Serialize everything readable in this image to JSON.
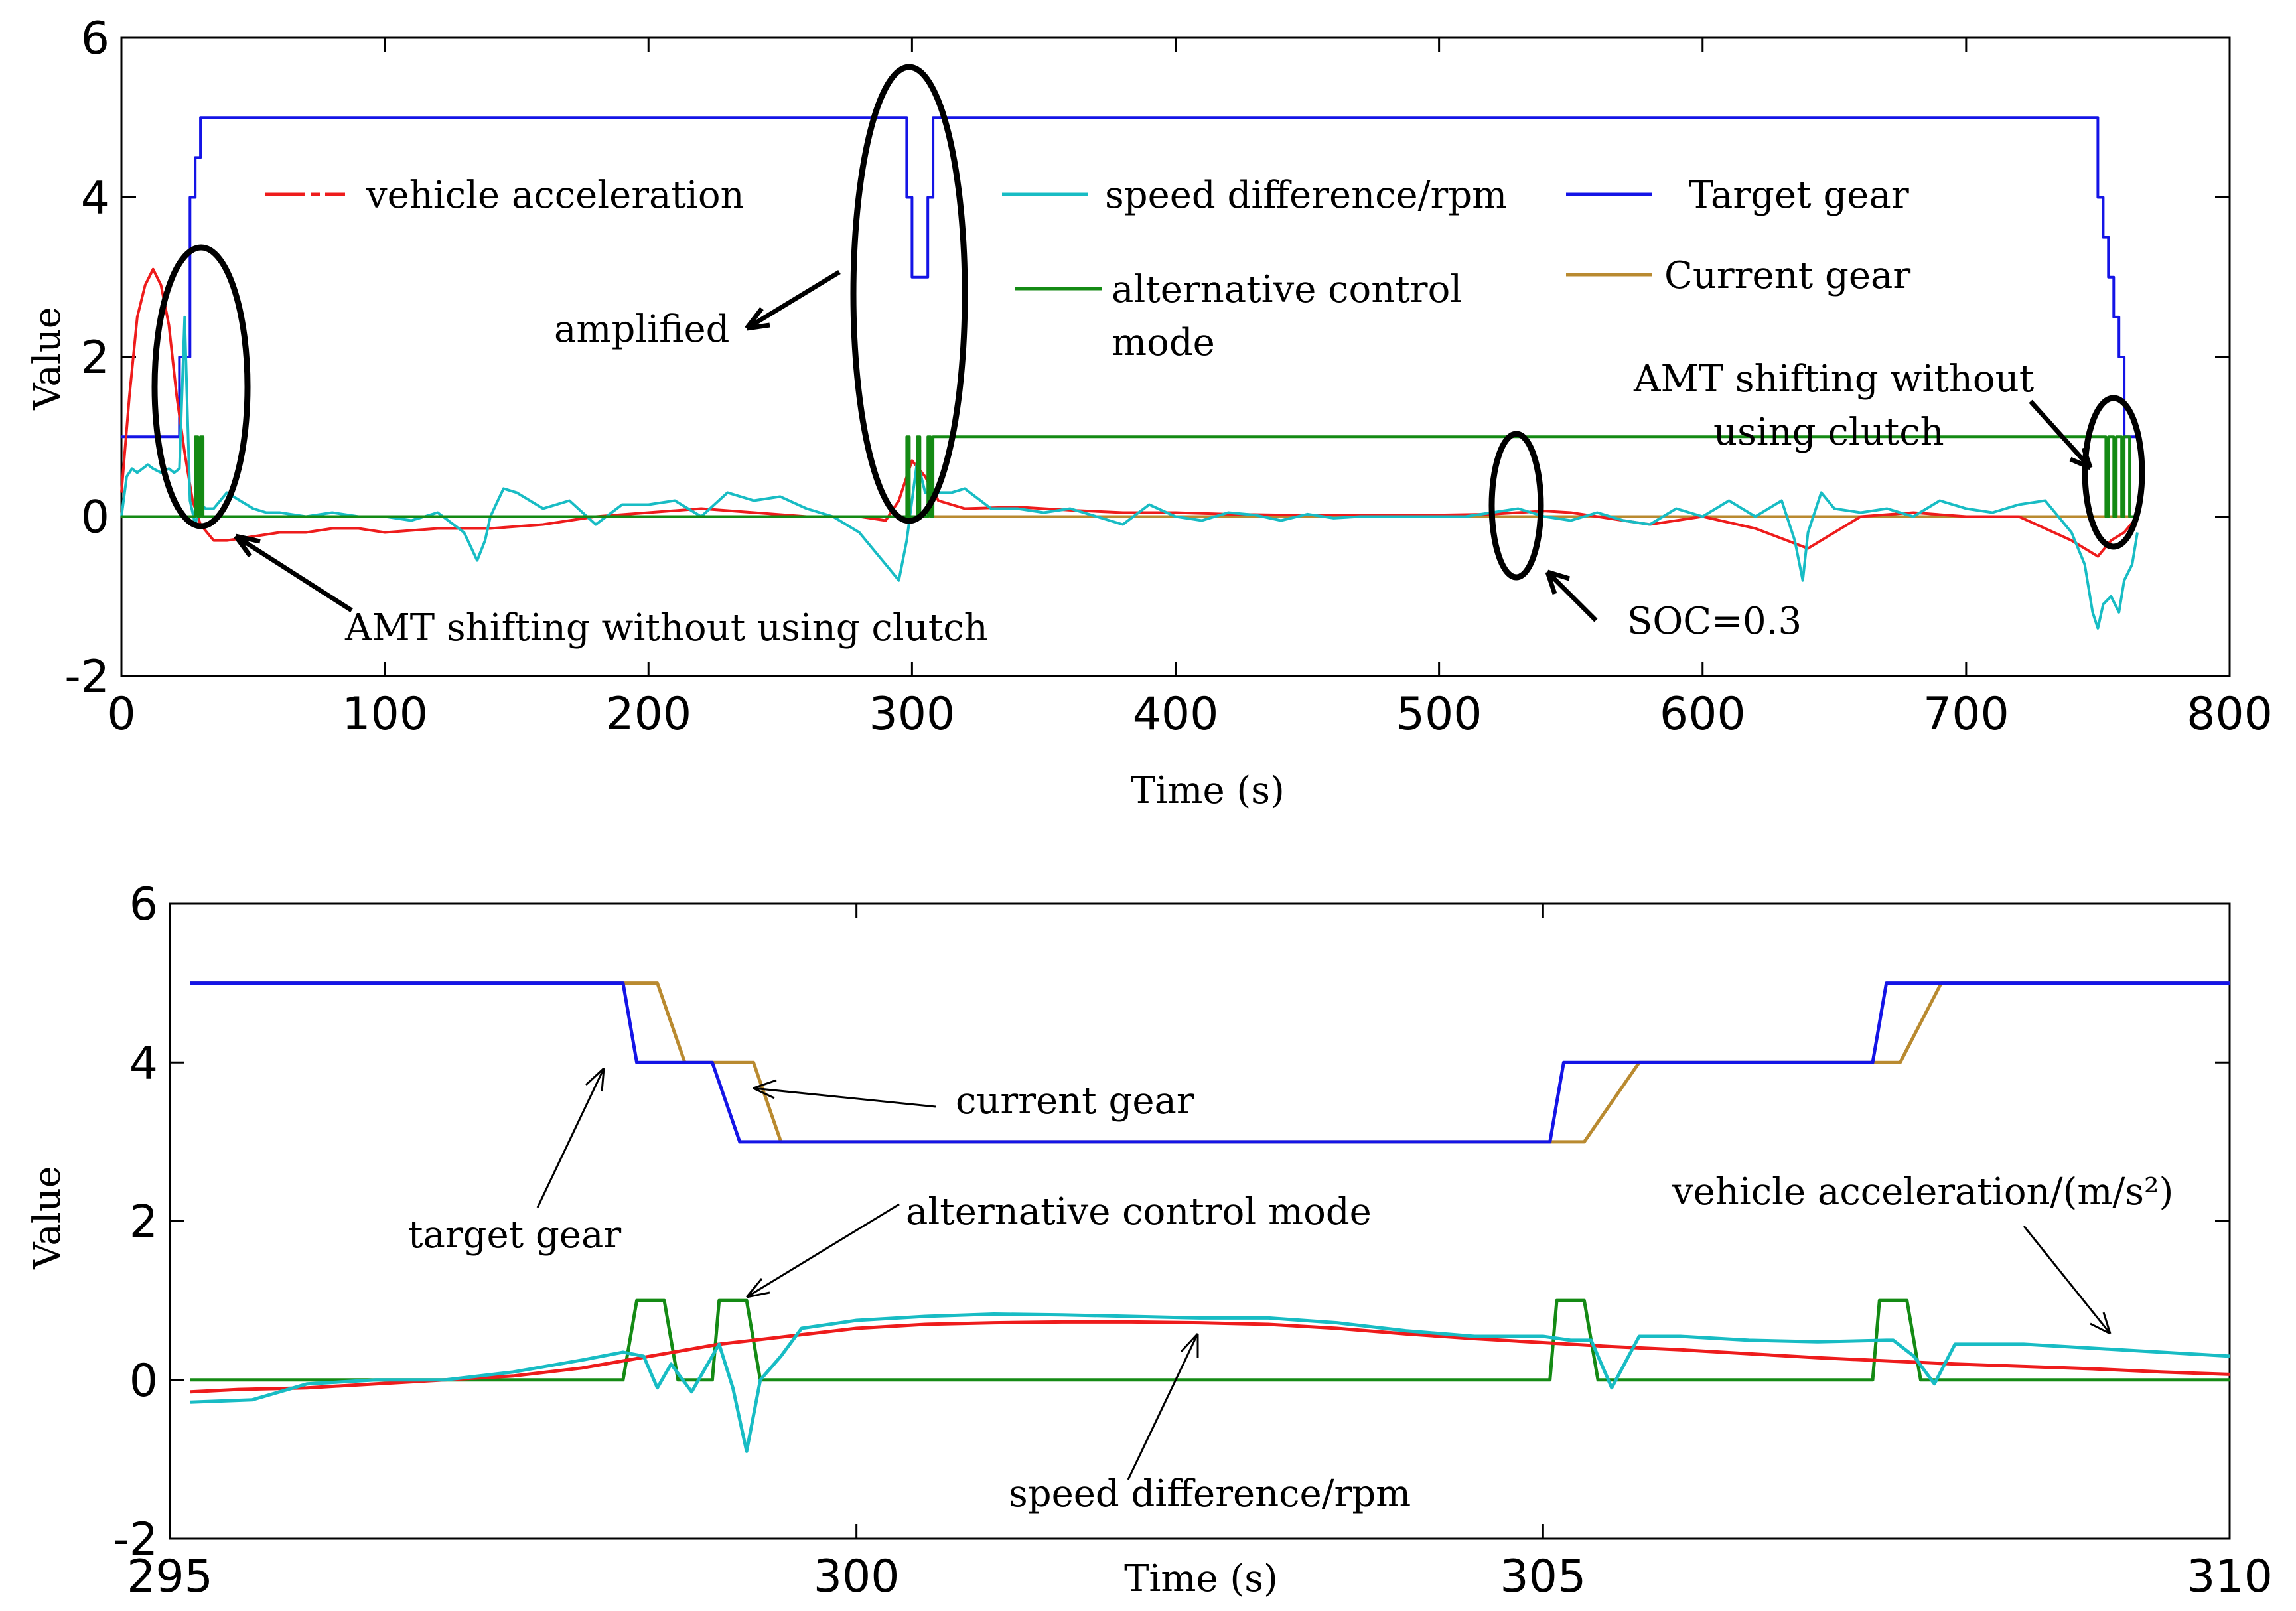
{
  "colors": {
    "vehicle_acceleration": "#ee1c1c",
    "speed_difference": "#18bcc4",
    "target_gear": "#1414e6",
    "current_gear": "#b98a30",
    "alternative_control": "#148a14"
  },
  "chart_data": [
    {
      "type": "line",
      "xlabel": "Time (s)",
      "ylabel": "Value",
      "xlim": [
        0,
        800
      ],
      "ylim": [
        -2,
        6
      ],
      "xticks": [
        "0",
        "100",
        "200",
        "300",
        "400",
        "500",
        "600",
        "700",
        "800"
      ],
      "yticks": [
        "-2",
        "0",
        "2",
        "4",
        "6"
      ],
      "legend": [
        {
          "key": "vehicle_acceleration",
          "label": "vehicle acceleration"
        },
        {
          "key": "speed_difference",
          "label": "speed difference/rpm"
        },
        {
          "key": "target_gear",
          "label": "Target gear"
        },
        {
          "key": "alternative_control",
          "label": "alternative control",
          "label2": "mode"
        },
        {
          "key": "current_gear",
          "label": "Current gear"
        }
      ],
      "annotations": {
        "amplified": "amplified",
        "amt_left": "AMT shifting without using clutch",
        "soc": "SOC=0.3",
        "amt_right_1": "AMT shifting without",
        "amt_right_2": "using clutch"
      },
      "series": [
        {
          "name": "Target gear",
          "key": "target_gear",
          "x": [
            0,
            22,
            22,
            26,
            26,
            28,
            28,
            30,
            30,
            298,
            298,
            300,
            300,
            306,
            306,
            308,
            308,
            750,
            750,
            752,
            752,
            754,
            754,
            756,
            756,
            758,
            758,
            760,
            760,
            765
          ],
          "y": [
            1,
            1,
            2,
            2,
            4,
            4,
            4.5,
            4.5,
            5,
            5,
            4,
            4,
            3,
            3,
            4,
            4,
            5,
            5,
            4,
            4,
            3.5,
            3.5,
            3,
            3,
            2.5,
            2.5,
            2,
            2,
            1,
            1
          ]
        },
        {
          "name": "Current gear",
          "key": "current_gear",
          "x": [
            0,
            765
          ],
          "y": [
            0,
            0
          ]
        },
        {
          "name": "vehicle acceleration",
          "key": "vehicle_acceleration",
          "x": [
            0,
            3,
            6,
            9,
            12,
            15,
            18,
            21,
            24,
            27,
            30,
            35,
            40,
            50,
            60,
            70,
            80,
            90,
            100,
            120,
            140,
            160,
            180,
            200,
            220,
            240,
            260,
            280,
            290,
            295,
            300,
            305,
            310,
            320,
            340,
            360,
            380,
            400,
            420,
            440,
            460,
            480,
            500,
            520,
            540,
            550,
            560,
            580,
            600,
            620,
            640,
            660,
            680,
            700,
            720,
            740,
            750,
            755,
            760,
            765
          ],
          "y": [
            0.3,
            1.5,
            2.5,
            2.9,
            3.1,
            2.9,
            2.4,
            1.5,
            0.8,
            0.2,
            -0.1,
            -0.3,
            -0.3,
            -0.25,
            -0.2,
            -0.2,
            -0.15,
            -0.15,
            -0.2,
            -0.15,
            -0.15,
            -0.1,
            0,
            0.05,
            0.1,
            0.05,
            0,
            0,
            -0.05,
            0.2,
            0.7,
            0.5,
            0.2,
            0.1,
            0.12,
            0.08,
            0.05,
            0.05,
            0.03,
            0.02,
            0.02,
            0.02,
            0.02,
            0.03,
            0.07,
            0.05,
            0,
            -0.1,
            0,
            -0.15,
            -0.4,
            0,
            0.05,
            0,
            0,
            -0.3,
            -0.5,
            -0.3,
            -0.2,
            0
          ]
        },
        {
          "name": "speed difference/rpm",
          "key": "speed_difference",
          "x": [
            0,
            2,
            4,
            6,
            8,
            10,
            12,
            15,
            18,
            20,
            22,
            24,
            26,
            28,
            30,
            32,
            35,
            40,
            45,
            50,
            55,
            60,
            70,
            80,
            90,
            100,
            110,
            120,
            130,
            135,
            138,
            140,
            145,
            150,
            160,
            170,
            180,
            190,
            200,
            210,
            220,
            230,
            240,
            250,
            260,
            270,
            280,
            285,
            290,
            295,
            298,
            302,
            305,
            310,
            315,
            320,
            330,
            340,
            350,
            360,
            370,
            380,
            390,
            400,
            410,
            420,
            430,
            440,
            450,
            460,
            470,
            480,
            490,
            500,
            510,
            520,
            530,
            540,
            550,
            560,
            570,
            580,
            590,
            600,
            610,
            620,
            630,
            635,
            638,
            640,
            645,
            650,
            660,
            670,
            680,
            690,
            700,
            710,
            720,
            730,
            740,
            745,
            748,
            750,
            752,
            755,
            758,
            760,
            763,
            765
          ],
          "y": [
            0,
            0.5,
            0.6,
            0.55,
            0.6,
            0.65,
            0.6,
            0.55,
            0.6,
            0.55,
            0.6,
            2.5,
            0.2,
            -0.1,
            0.15,
            0.1,
            0.1,
            0.3,
            0.2,
            0.1,
            0.05,
            0.05,
            0,
            0.05,
            0,
            0,
            -0.05,
            0.05,
            -0.2,
            -0.55,
            -0.3,
            0,
            0.35,
            0.3,
            0.1,
            0.2,
            -0.1,
            0.15,
            0.15,
            0.2,
            0,
            0.3,
            0.2,
            0.25,
            0.1,
            0,
            -0.2,
            -0.4,
            -0.6,
            -0.8,
            -0.3,
            0.7,
            0.3,
            0.3,
            0.3,
            0.35,
            0.1,
            0.1,
            0.05,
            0.1,
            0,
            -0.1,
            0.15,
            0,
            -0.05,
            0.05,
            0.02,
            -0.05,
            0.03,
            -0.02,
            0,
            0,
            0,
            0,
            0,
            0.05,
            0.1,
            0,
            -0.05,
            0.05,
            -0.05,
            -0.1,
            0.1,
            0,
            0.2,
            0,
            0.2,
            -0.3,
            -0.8,
            -0.2,
            0.3,
            0.1,
            0.05,
            0.1,
            0,
            0.2,
            0.1,
            0.05,
            0.15,
            0.2,
            -0.2,
            -0.6,
            -1.2,
            -1.4,
            -1.1,
            -1.0,
            -1.2,
            -0.8,
            -0.6,
            -0.2
          ]
        },
        {
          "name": "alternative control mode",
          "key": "alternative_control",
          "x": [
            0,
            28,
            28,
            29,
            29,
            30,
            30,
            31,
            31,
            298,
            298,
            299,
            299,
            302,
            302,
            303,
            303,
            306,
            306,
            307,
            307,
            308,
            308,
            753,
            753,
            754,
            754,
            756,
            756,
            757,
            757,
            759,
            759,
            760,
            760,
            762,
            762,
            765
          ],
          "y": [
            0,
            0,
            1,
            1,
            0,
            0,
            1,
            1,
            0,
            0,
            1,
            1,
            0,
            0,
            1,
            1,
            0,
            0,
            1,
            1,
            0,
            0,
            1,
            1,
            0,
            0,
            1,
            1,
            0,
            0,
            1,
            1,
            0,
            0,
            1,
            1,
            0,
            0
          ]
        }
      ]
    },
    {
      "type": "line",
      "xlabel": "Time (s)",
      "ylabel": "Value",
      "xlim": [
        295,
        310
      ],
      "ylim": [
        -2,
        6
      ],
      "xticks": [
        "295",
        "300",
        "305",
        "310"
      ],
      "yticks": [
        "-2",
        "0",
        "2",
        "4",
        "6"
      ],
      "annotations": {
        "current_gear": "current gear",
        "target_gear": "target gear",
        "alternative_control": "alternative control mode",
        "vehicle_acceleration": "vehicle acceleration/(m/s²)",
        "speed_difference": "speed difference/rpm"
      },
      "series": [
        {
          "name": "current gear",
          "key": "current_gear",
          "x": [
            295.15,
            298.55,
            298.75,
            299.25,
            299.45,
            305.3,
            305.7,
            307.6,
            307.9,
            310
          ],
          "y": [
            5,
            5,
            4,
            4,
            3,
            3,
            4,
            4,
            5,
            5
          ]
        },
        {
          "name": "target gear",
          "key": "target_gear",
          "x": [
            295.15,
            298.3,
            298.4,
            298.95,
            299.15,
            305.05,
            305.15,
            307.4,
            307.5,
            310
          ],
          "y": [
            5,
            5,
            4,
            4,
            3,
            3,
            4,
            4,
            5,
            5
          ]
        },
        {
          "name": "alternative control mode",
          "key": "alternative_control",
          "x": [
            295.15,
            298.3,
            298.4,
            298.6,
            298.7,
            298.95,
            299.0,
            299.2,
            299.3,
            305.05,
            305.1,
            305.3,
            305.4,
            307.4,
            307.45,
            307.65,
            307.75,
            310
          ],
          "y": [
            0,
            0,
            1,
            1,
            0,
            0,
            1,
            1,
            0,
            0,
            1,
            1,
            0,
            0,
            1,
            1,
            0,
            0
          ]
        },
        {
          "name": "vehicle acceleration",
          "key": "vehicle_acceleration",
          "x": [
            295.15,
            295.5,
            296,
            296.5,
            297,
            297.5,
            298,
            298.5,
            299,
            299.5,
            300,
            300.5,
            301,
            301.5,
            302,
            302.5,
            303,
            303.5,
            304,
            304.5,
            305,
            305.5,
            306,
            306.5,
            307,
            307.5,
            308,
            308.5,
            309,
            309.5,
            310
          ],
          "y": [
            -0.15,
            -0.12,
            -0.1,
            -0.05,
            0,
            0.05,
            0.15,
            0.3,
            0.45,
            0.55,
            0.65,
            0.7,
            0.72,
            0.73,
            0.73,
            0.72,
            0.7,
            0.65,
            0.58,
            0.52,
            0.47,
            0.42,
            0.38,
            0.33,
            0.28,
            0.24,
            0.2,
            0.17,
            0.14,
            0.1,
            0.07
          ]
        },
        {
          "name": "speed difference/rpm",
          "key": "speed_difference",
          "x": [
            295.15,
            295.6,
            296,
            296.5,
            297,
            297.5,
            298,
            298.3,
            298.45,
            298.55,
            298.65,
            298.8,
            299.0,
            299.1,
            299.2,
            299.3,
            299.45,
            299.6,
            300,
            300.5,
            301,
            301.5,
            302,
            302.5,
            303,
            303.5,
            304,
            304.5,
            305,
            305.2,
            305.35,
            305.5,
            305.7,
            306,
            306.5,
            307,
            307.5,
            307.55,
            307.7,
            307.85,
            308,
            308.5,
            309,
            309.5,
            310
          ],
          "y": [
            -0.28,
            -0.25,
            -0.05,
            0,
            0,
            0.1,
            0.25,
            0.35,
            0.3,
            -0.1,
            0.2,
            -0.15,
            0.45,
            -0.1,
            -0.9,
            0,
            0.3,
            0.65,
            0.75,
            0.8,
            0.83,
            0.82,
            0.8,
            0.78,
            0.78,
            0.72,
            0.62,
            0.55,
            0.55,
            0.5,
            0.5,
            -0.1,
            0.55,
            0.55,
            0.5,
            0.48,
            0.5,
            0.5,
            0.3,
            -0.05,
            0.45,
            0.45,
            0.4,
            0.35,
            0.3
          ]
        }
      ]
    }
  ]
}
